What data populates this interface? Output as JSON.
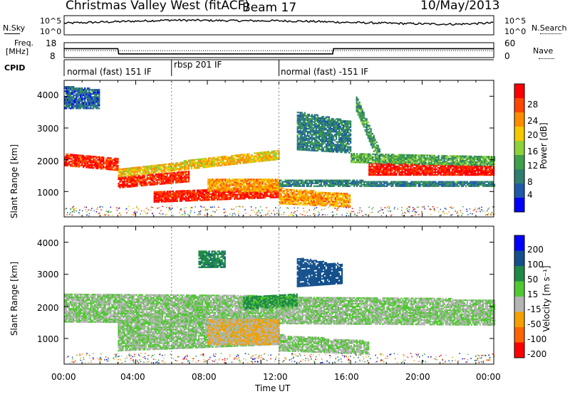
{
  "header": {
    "station": "Christmas Valley West (fitACF)",
    "beam": "Beam 17",
    "date": "10/May/2013"
  },
  "top_panels": {
    "nsky_label": "N.Sky",
    "nsearch_label": "N.Search",
    "freq_label_1": "Freq.",
    "freq_label_2": "[MHz]",
    "nave_label": "Nave",
    "cpid_label": "CPID",
    "noise_ticks_left": [
      "10^5",
      "10^0"
    ],
    "noise_ticks_right": [
      "10^5",
      "10^0"
    ],
    "freq_ticks_left": [
      "18",
      "8"
    ],
    "freq_ticks_right": [
      "60",
      "0"
    ]
  },
  "cpid_modes": [
    {
      "label": "normal (fast) 151 IF",
      "start_hour": 0
    },
    {
      "label": "rbsp 201 IF",
      "start_hour": 6
    },
    {
      "label": "normal (fast) -151 IF",
      "start_hour": 12
    }
  ],
  "axes": {
    "ylabel": "Slant Range [km]",
    "xlabel": "Time UT",
    "xticks": [
      "00:00",
      "04:00",
      "08:00",
      "12:00",
      "16:00",
      "20:00",
      "00:00"
    ],
    "yticks": [
      "1000",
      "2000",
      "3000",
      "4000"
    ]
  },
  "colorbars": {
    "power": {
      "label": "Power [dB]",
      "ticks": [
        "4",
        "8",
        "12",
        "16",
        "20",
        "24",
        "28"
      ]
    },
    "velocity": {
      "label": "Velocity [m s⁻¹]",
      "ticks": [
        "200",
        "100",
        "50",
        "15",
        "-15",
        "-50",
        "-100",
        "-200"
      ]
    }
  },
  "colors": {
    "power": [
      "#0000ff",
      "#1f5aa8",
      "#2e7f70",
      "#3fa04a",
      "#8ed13a",
      "#f5c800",
      "#ff8c00",
      "#ff4500",
      "#ff0000"
    ],
    "velocity": [
      "#0000ff",
      "#14508c",
      "#1e8a46",
      "#50c832",
      "#b4b4b4",
      "#f4a000",
      "#ff6400",
      "#ff0000"
    ]
  },
  "chart_data": [
    {
      "type": "line",
      "title": "N.Sky / N.Search",
      "x_hours": [
        0,
        2,
        4,
        6,
        8,
        10,
        12,
        14,
        16,
        18,
        20,
        22,
        24
      ],
      "series": [
        {
          "name": "N.Sky",
          "values_log10": [
            3.0,
            3.3,
            3.6,
            3.9,
            3.8,
            3.7,
            3.7,
            3.5,
            3.2,
            3.0,
            2.8,
            2.7,
            3.1
          ]
        }
      ],
      "ylim": [
        0,
        5
      ]
    },
    {
      "type": "line",
      "title": "Freq. / Nave",
      "x_hours": [
        0,
        3,
        3.05,
        15,
        15.05,
        24
      ],
      "series": [
        {
          "name": "Freq.",
          "values": [
            14,
            14,
            10.5,
            10.5,
            14,
            14
          ]
        },
        {
          "name": "Nave",
          "values": [
            28,
            28,
            28,
            28,
            28,
            28
          ]
        }
      ],
      "ylim_freq": [
        8,
        18
      ],
      "ylim_nave": [
        0,
        60
      ]
    },
    {
      "type": "heatmap",
      "title": "Power [dB]",
      "xlabel": "Time UT",
      "ylabel": "Slant Range [km]",
      "xlim_hours": [
        0,
        24
      ],
      "ylim_km": [
        200,
        4500
      ],
      "bands": [
        {
          "t0": 0,
          "t1": 3,
          "r0": 1800,
          "r1": 2200,
          "r0_end": 1650,
          "r1_end": 2050,
          "value_db": 26
        },
        {
          "t0": 3,
          "t1": 7,
          "r0": 1100,
          "r1": 1450,
          "r0_end": 1300,
          "r1_end": 1650,
          "value_db": 26
        },
        {
          "t0": 3,
          "t1": 12,
          "r0": 1450,
          "r1": 1700,
          "r0_end": 2000,
          "r1_end": 2300,
          "value_db": 18
        },
        {
          "t0": 5,
          "t1": 12,
          "r0": 650,
          "r1": 1000,
          "r0_end": 800,
          "r1_end": 1100,
          "value_db": 26
        },
        {
          "t0": 8,
          "t1": 12,
          "r0": 1000,
          "r1": 1400,
          "r0_end": 1000,
          "r1_end": 1400,
          "value_db": 20
        },
        {
          "t0": 12,
          "t1": 16,
          "r0": 600,
          "r1": 1100,
          "r0_end": 500,
          "r1_end": 900,
          "value_db": 20
        },
        {
          "t0": 17,
          "t1": 24,
          "r0": 1500,
          "r1": 1900,
          "r0_end": 1500,
          "r1_end": 1800,
          "value_db": 27
        },
        {
          "t0": 16,
          "t1": 24,
          "r0": 1900,
          "r1": 2200,
          "r0_end": 1800,
          "r1_end": 2100,
          "value_db": 12
        },
        {
          "t0": 12,
          "t1": 24,
          "r0": 1150,
          "r1": 1350,
          "r0_end": 1150,
          "r1_end": 1300,
          "value_db": 8
        },
        {
          "t0": 0,
          "t1": 2,
          "r0": 3600,
          "r1": 4300,
          "r0_end": 3600,
          "r1_end": 4200,
          "value_db": 6
        },
        {
          "t0": 13,
          "t1": 16,
          "r0": 2300,
          "r1": 3500,
          "r0_end": 2200,
          "r1_end": 3200,
          "value_db": 8
        },
        {
          "t0": 16.3,
          "t1": 17.6,
          "r0": 3500,
          "r1": 4000,
          "r0_end": 1800,
          "r1_end": 2300,
          "value_db": 10
        }
      ]
    },
    {
      "type": "heatmap",
      "title": "Velocity [m s⁻¹]",
      "xlabel": "Time UT",
      "ylabel": "Slant Range [km]",
      "xlim_hours": [
        0,
        24
      ],
      "ylim_km": [
        200,
        4500
      ],
      "bands": [
        {
          "t0": 0,
          "t1": 24,
          "r0": 1500,
          "r1": 2400,
          "r0_end": 1400,
          "r1_end": 2200,
          "value_ms": 0
        },
        {
          "t0": 3,
          "t1": 12,
          "r0": 600,
          "r1": 1500,
          "r0_end": 800,
          "r1_end": 1700,
          "value_ms": 0
        },
        {
          "t0": 8,
          "t1": 12,
          "r0": 800,
          "r1": 1600,
          "r0_end": 800,
          "r1_end": 1600,
          "value_ms": -30
        },
        {
          "t0": 10,
          "t1": 13,
          "r0": 1900,
          "r1": 2300,
          "r0_end": 2000,
          "r1_end": 2400,
          "value_ms": 40
        },
        {
          "t0": 12,
          "t1": 17,
          "r0": 600,
          "r1": 1100,
          "r0_end": 500,
          "r1_end": 900,
          "value_ms": 0
        },
        {
          "t0": 13,
          "t1": 15.5,
          "r0": 2600,
          "r1": 3500,
          "r0_end": 2700,
          "r1_end": 3300,
          "value_ms": 110
        },
        {
          "t0": 7.5,
          "t1": 9,
          "r0": 3200,
          "r1": 3700,
          "r0_end": 3200,
          "r1_end": 3700,
          "value_ms": 60
        }
      ]
    }
  ]
}
